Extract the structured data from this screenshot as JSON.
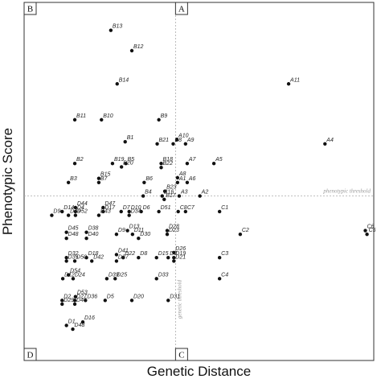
{
  "chart_data": {
    "type": "scatter",
    "xlabel": "Genetic Distance",
    "ylabel": "Phenotypic Score",
    "xlim": [
      0,
      100
    ],
    "ylim": [
      0,
      100
    ],
    "grid": false,
    "legend": "none",
    "thresholds": {
      "genetic": {
        "x": 42.5,
        "label": "genetic threshold"
      },
      "phenotypic": {
        "y": 45.7,
        "label": "phenotypic threshold"
      }
    },
    "quadrants": [
      {
        "id": "B",
        "label": "B",
        "corner": "top-left"
      },
      {
        "id": "A",
        "label": "A",
        "corner": "top-center"
      },
      {
        "id": "D",
        "label": "D",
        "corner": "bottom-left"
      },
      {
        "id": "C",
        "label": "C",
        "corner": "bottom-center"
      }
    ],
    "colors": {
      "point": "#111111",
      "threshold": "#aaaaaa",
      "frame": "#333333"
    },
    "points": [
      {
        "label": "B13",
        "x": 23.1,
        "y": 94.6
      },
      {
        "label": "B12",
        "x": 29.4,
        "y": 88.6
      },
      {
        "label": "B14",
        "x": 25.0,
        "y": 78.8
      },
      {
        "label": "A11",
        "x": 76.4,
        "y": 78.8
      },
      {
        "label": "B11",
        "x": 12.3,
        "y": 68.2
      },
      {
        "label": "B10",
        "x": 20.3,
        "y": 68.2
      },
      {
        "label": "B9",
        "x": 37.5,
        "y": 68.2
      },
      {
        "label": "A10",
        "x": 42.9,
        "y": 62.3
      },
      {
        "label": "B1",
        "x": 27.4,
        "y": 61.7
      },
      {
        "label": "B21",
        "x": 37.0,
        "y": 61.1
      },
      {
        "label": "B8",
        "x": 41.8,
        "y": 61.1
      },
      {
        "label": "A9",
        "x": 45.5,
        "y": 61.1
      },
      {
        "label": "A4",
        "x": 87.3,
        "y": 61.1
      },
      {
        "label": "B2",
        "x": 12.3,
        "y": 55.3
      },
      {
        "label": "B19",
        "x": 23.6,
        "y": 55.3
      },
      {
        "label": "B5",
        "x": 27.6,
        "y": 55.3
      },
      {
        "label": "B20",
        "x": 26.3,
        "y": 54.3
      },
      {
        "label": "B18",
        "x": 38.2,
        "y": 55.3
      },
      {
        "label": "B22",
        "x": 38.2,
        "y": 54.1
      },
      {
        "label": "A7",
        "x": 46.0,
        "y": 55.3
      },
      {
        "label": "A5",
        "x": 54.0,
        "y": 55.3
      },
      {
        "label": "B15",
        "x": 19.5,
        "y": 50.9
      },
      {
        "label": "B7",
        "x": 19.5,
        "y": 49.7
      },
      {
        "label": "A8",
        "x": 43.1,
        "y": 51.1
      },
      {
        "label": "B3",
        "x": 10.4,
        "y": 49.7
      },
      {
        "label": "B6",
        "x": 33.1,
        "y": 49.7
      },
      {
        "label": "A1",
        "x": 43.1,
        "y": 49.7
      },
      {
        "label": "A6",
        "x": 46.0,
        "y": 49.7
      },
      {
        "label": "B23",
        "x": 39.3,
        "y": 47.1
      },
      {
        "label": "B4",
        "x": 32.8,
        "y": 45.7
      },
      {
        "label": "B16",
        "x": 38.5,
        "y": 45.7
      },
      {
        "label": "A3",
        "x": 43.6,
        "y": 45.7
      },
      {
        "label": "A2",
        "x": 49.8,
        "y": 45.7
      },
      {
        "label": "B17",
        "x": 39.1,
        "y": 44.7
      },
      {
        "label": "D44",
        "x": 12.5,
        "y": 42.3
      },
      {
        "label": "D47",
        "x": 20.8,
        "y": 42.3
      },
      {
        "label": "D14",
        "x": 8.5,
        "y": 41.1
      },
      {
        "label": "D4",
        "x": 12.5,
        "y": 41.1
      },
      {
        "label": "D52",
        "x": 12.5,
        "y": 40.0
      },
      {
        "label": "D17",
        "x": 20.8,
        "y": 41.1
      },
      {
        "label": "D7",
        "x": 26.2,
        "y": 41.1
      },
      {
        "label": "D10",
        "x": 28.6,
        "y": 41.1
      },
      {
        "label": "D6",
        "x": 32.2,
        "y": 41.1
      },
      {
        "label": "D51",
        "x": 37.5,
        "y": 41.1
      },
      {
        "label": "C8",
        "x": 43.3,
        "y": 41.1
      },
      {
        "label": "C7",
        "x": 45.5,
        "y": 41.1
      },
      {
        "label": "C1",
        "x": 55.7,
        "y": 41.1
      },
      {
        "label": "D43",
        "x": 19.5,
        "y": 40.0
      },
      {
        "label": "D34",
        "x": 28.6,
        "y": 40.0
      },
      {
        "label": "D9",
        "x": 5.4,
        "y": 40.0
      },
      {
        "label": "D49",
        "x": 10.4,
        "y": 40.0
      },
      {
        "label": "D45",
        "x": 9.8,
        "y": 35.0
      },
      {
        "label": "D38",
        "x": 15.8,
        "y": 35.0
      },
      {
        "label": "D13",
        "x": 28.1,
        "y": 35.5
      },
      {
        "label": "D28",
        "x": 40.0,
        "y": 35.5
      },
      {
        "label": "D23",
        "x": 40.0,
        "y": 34.4
      },
      {
        "label": "C2",
        "x": 61.9,
        "y": 34.4
      },
      {
        "label": "C6",
        "x": 99.4,
        "y": 35.5
      },
      {
        "label": "C5",
        "x": 99.9,
        "y": 34.4
      },
      {
        "label": "D9",
        "x": 24.8,
        "y": 34.4
      },
      {
        "label": "D11",
        "x": 29.6,
        "y": 34.4
      },
      {
        "label": "D48",
        "x": 9.8,
        "y": 33.2
      },
      {
        "label": "D40",
        "x": 15.8,
        "y": 33.2
      },
      {
        "label": "D30",
        "x": 31.4,
        "y": 33.2
      },
      {
        "label": "D41",
        "x": 24.8,
        "y": 28.4
      },
      {
        "label": "D26",
        "x": 42.0,
        "y": 29.0
      },
      {
        "label": "D32",
        "x": 9.8,
        "y": 27.5
      },
      {
        "label": "D18",
        "x": 15.8,
        "y": 27.5
      },
      {
        "label": "D22",
        "x": 26.8,
        "y": 27.5
      },
      {
        "label": "D8",
        "x": 31.4,
        "y": 27.5
      },
      {
        "label": "D15",
        "x": 36.8,
        "y": 27.5
      },
      {
        "label": "D3",
        "x": 40.3,
        "y": 27.5
      },
      {
        "label": "D19",
        "x": 42.0,
        "y": 27.5
      },
      {
        "label": "C3",
        "x": 55.7,
        "y": 27.5
      },
      {
        "label": "D35",
        "x": 9.8,
        "y": 26.5
      },
      {
        "label": "D50",
        "x": 12.3,
        "y": 26.5
      },
      {
        "label": "D42",
        "x": 17.4,
        "y": 26.5
      },
      {
        "label": "D37",
        "x": 24.8,
        "y": 26.5
      },
      {
        "label": "D21",
        "x": 42.0,
        "y": 26.5
      },
      {
        "label": "D54",
        "x": 10.4,
        "y": 22.4
      },
      {
        "label": "D12",
        "x": 8.7,
        "y": 21.3
      },
      {
        "label": "D24",
        "x": 11.8,
        "y": 21.3
      },
      {
        "label": "D39",
        "x": 21.9,
        "y": 21.3
      },
      {
        "label": "D25",
        "x": 24.4,
        "y": 21.3
      },
      {
        "label": "D33",
        "x": 36.8,
        "y": 21.3
      },
      {
        "label": "C4",
        "x": 55.7,
        "y": 21.3
      },
      {
        "label": "D53",
        "x": 12.5,
        "y": 16.0
      },
      {
        "label": "D2",
        "x": 8.5,
        "y": 14.9
      },
      {
        "label": "D27",
        "x": 12.3,
        "y": 14.9
      },
      {
        "label": "D36",
        "x": 15.5,
        "y": 14.9
      },
      {
        "label": "D5",
        "x": 21.4,
        "y": 14.9
      },
      {
        "label": "D20",
        "x": 29.4,
        "y": 14.9
      },
      {
        "label": "D31",
        "x": 40.3,
        "y": 14.9
      },
      {
        "label": "D29",
        "x": 8.5,
        "y": 13.8
      },
      {
        "label": "D46",
        "x": 12.3,
        "y": 13.8
      },
      {
        "label": "D16",
        "x": 14.7,
        "y": 8.5
      },
      {
        "label": "D1",
        "x": 9.8,
        "y": 7.5
      },
      {
        "label": "D48",
        "x": 11.7,
        "y": 6.4
      }
    ]
  }
}
